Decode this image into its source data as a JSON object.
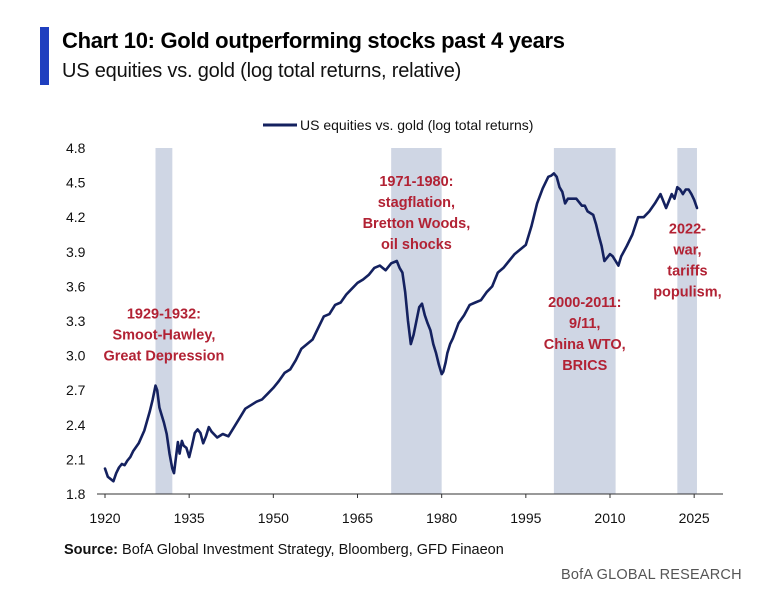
{
  "header": {
    "title": "Chart 10: Gold outperforming stocks past 4 years",
    "subtitle": "US equities vs. gold (log total returns, relative)",
    "accent_color": "#1f3fbf"
  },
  "footer": {
    "source_label": "Source:",
    "source_text": "BofA Global Investment Strategy, Bloomberg, GFD Finaeon",
    "brand": "BofA GLOBAL RESEARCH"
  },
  "chart_data": {
    "type": "line",
    "title": "",
    "xlabel": "",
    "ylabel": "",
    "xlim": [
      1920,
      2028
    ],
    "ylim": [
      1.8,
      4.8
    ],
    "x_ticks": [
      1920,
      1935,
      1950,
      1965,
      1980,
      1995,
      2010,
      2025
    ],
    "y_ticks": [
      1.8,
      2.1,
      2.4,
      2.7,
      3.0,
      3.3,
      3.6,
      3.9,
      4.2,
      4.5,
      4.8
    ],
    "y_tick_labels": [
      "1.8",
      "2.1",
      "2.4",
      "2.7",
      "3.0",
      "3.3",
      "3.6",
      "3.9",
      "4.2",
      "4.5",
      "4.8"
    ],
    "grid": false,
    "legend": {
      "position": "top-center",
      "entries": [
        "US equities vs. gold (log total returns)"
      ]
    },
    "colors": {
      "line": "#14215f",
      "shade": "#cfd6e4",
      "annotation": "#b22234"
    },
    "series": [
      {
        "name": "US equities vs. gold (log total returns)",
        "x": [
          1920,
          1920.5,
          1921,
          1921.5,
          1922,
          1922.5,
          1923,
          1923.5,
          1924,
          1924.5,
          1925,
          1926,
          1927,
          1928,
          1928.5,
          1929,
          1929.3,
          1929.7,
          1930,
          1930.5,
          1931,
          1931.5,
          1932,
          1932.3,
          1932.6,
          1933,
          1933.3,
          1933.7,
          1934,
          1934.5,
          1935,
          1935.5,
          1936,
          1936.5,
          1937,
          1937.5,
          1938,
          1938.5,
          1939,
          1940,
          1941,
          1942,
          1943,
          1944,
          1945,
          1946,
          1947,
          1948,
          1949,
          1950,
          1951,
          1952,
          1953,
          1954,
          1955,
          1956,
          1957,
          1958,
          1959,
          1960,
          1961,
          1962,
          1963,
          1964,
          1965,
          1966,
          1967,
          1968,
          1969,
          1970,
          1971,
          1972,
          1972.5,
          1973,
          1973.5,
          1974,
          1974.5,
          1975,
          1975.5,
          1976,
          1976.5,
          1977,
          1977.5,
          1978,
          1978.5,
          1979,
          1979.5,
          1980,
          1980.3,
          1980.7,
          1981,
          1981.5,
          1982,
          1983,
          1984,
          1985,
          1986,
          1987,
          1988,
          1989,
          1990,
          1991,
          1992,
          1993,
          1994,
          1995,
          1996,
          1997,
          1998,
          1999,
          1999.5,
          2000,
          2000.5,
          2001,
          2001.5,
          2002,
          2002.5,
          2003,
          2004,
          2005,
          2005.5,
          2006,
          2007,
          2007.5,
          2008,
          2008.5,
          2009,
          2009.5,
          2010,
          2010.5,
          2011,
          2011.5,
          2012,
          2013,
          2014,
          2015,
          2016,
          2017,
          2018,
          2019,
          2020,
          2020.5,
          2021,
          2021.5,
          2022,
          2022.5,
          2023,
          2023.5,
          2024,
          2024.5,
          2025,
          2025.5
        ],
        "values": [
          2.02,
          1.95,
          1.93,
          1.91,
          1.98,
          2.03,
          2.06,
          2.05,
          2.09,
          2.12,
          2.17,
          2.24,
          2.35,
          2.52,
          2.62,
          2.74,
          2.7,
          2.55,
          2.5,
          2.42,
          2.32,
          2.15,
          2.02,
          1.98,
          2.1,
          2.25,
          2.15,
          2.26,
          2.22,
          2.2,
          2.12,
          2.22,
          2.33,
          2.36,
          2.33,
          2.24,
          2.3,
          2.38,
          2.34,
          2.29,
          2.32,
          2.3,
          2.38,
          2.46,
          2.54,
          2.57,
          2.6,
          2.62,
          2.67,
          2.72,
          2.78,
          2.85,
          2.88,
          2.96,
          3.06,
          3.1,
          3.14,
          3.24,
          3.34,
          3.36,
          3.44,
          3.46,
          3.53,
          3.58,
          3.63,
          3.66,
          3.7,
          3.76,
          3.78,
          3.74,
          3.8,
          3.82,
          3.76,
          3.72,
          3.55,
          3.3,
          3.1,
          3.18,
          3.3,
          3.42,
          3.45,
          3.35,
          3.28,
          3.22,
          3.1,
          3.02,
          2.92,
          2.84,
          2.86,
          2.94,
          3.02,
          3.1,
          3.15,
          3.28,
          3.35,
          3.44,
          3.46,
          3.48,
          3.55,
          3.6,
          3.72,
          3.76,
          3.82,
          3.88,
          3.92,
          3.96,
          4.12,
          4.32,
          4.45,
          4.55,
          4.56,
          4.58,
          4.55,
          4.46,
          4.42,
          4.32,
          4.36,
          4.36,
          4.36,
          4.3,
          4.3,
          4.25,
          4.22,
          4.14,
          4.04,
          3.95,
          3.82,
          3.85,
          3.88,
          3.86,
          3.82,
          3.78,
          3.86,
          3.95,
          4.05,
          4.2,
          4.2,
          4.25,
          4.32,
          4.4,
          4.28,
          4.34,
          4.4,
          4.36,
          4.46,
          4.44,
          4.4,
          4.44,
          4.44,
          4.4,
          4.35,
          4.28
        ]
      }
    ],
    "shaded_periods": [
      [
        1929,
        1932
      ],
      [
        1971,
        1980
      ],
      [
        2000,
        2011
      ],
      [
        2022,
        2025.5
      ]
    ],
    "annotations": [
      {
        "lines": [
          "1929-1932:",
          "Smoot-Hawley,",
          "Great Depression"
        ],
        "at": [
          1930.5,
          3.32
        ]
      },
      {
        "lines": [
          "1971-1980:",
          "stagflation,",
          "Bretton Woods,",
          "oil shocks"
        ],
        "at": [
          1975.5,
          4.47
        ]
      },
      {
        "lines": [
          "2000-2011:",
          "9/11,",
          "China WTO,",
          "BRICS"
        ],
        "at": [
          2005.5,
          3.42
        ]
      },
      {
        "lines": [
          "2022-",
          "war,",
          "tariffs",
          "populism,"
        ],
        "at": [
          2023.8,
          4.06
        ]
      }
    ]
  }
}
